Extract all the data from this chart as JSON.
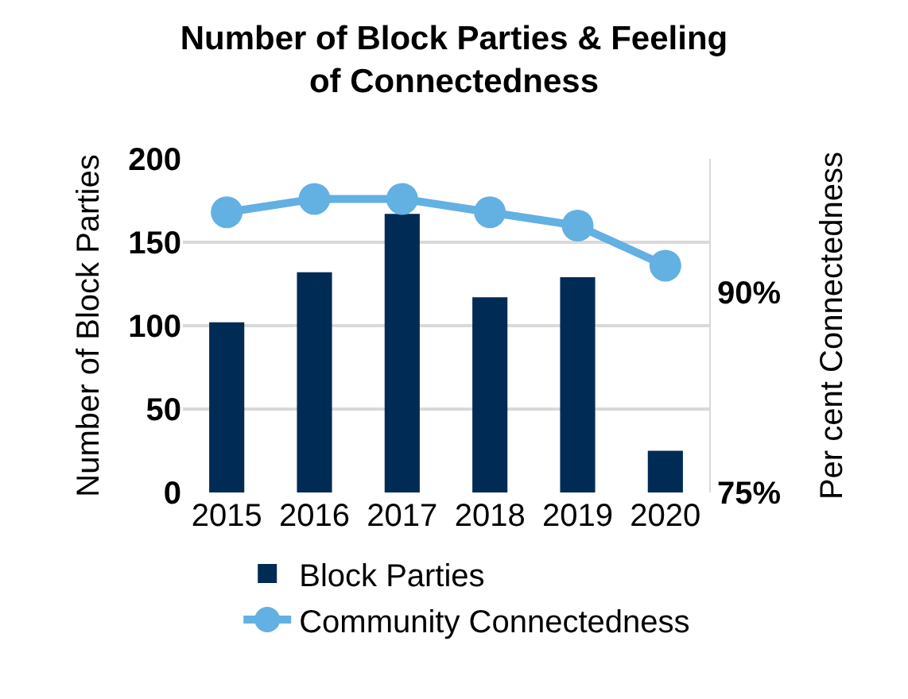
{
  "chart_data": {
    "type": "bar",
    "title": "Number of Block Parties & Feeling of Connectedness",
    "categories": [
      "2015",
      "2016",
      "2017",
      "2018",
      "2019",
      "2020"
    ],
    "series": [
      {
        "name": "Block Parties",
        "color": "#002b55",
        "values": [
          102,
          132,
          167,
          117,
          129,
          25
        ]
      },
      {
        "name": "Community Connectedness",
        "type": "line",
        "axis": "y2",
        "color": "#63b0e3",
        "marker": "circle",
        "values": [
          96,
          97,
          97,
          96,
          95,
          92
        ]
      }
    ],
    "ylabel": "Number of Block Parties",
    "y2label": "Per cent Connectedness",
    "ylim": [
      0,
      200
    ],
    "yticks": [
      0,
      50,
      100,
      150,
      200
    ],
    "y2lim": [
      75,
      100
    ],
    "y2ticks": [
      {
        "value": 75,
        "label": "75%"
      },
      {
        "value": 90,
        "label": "90%"
      }
    ],
    "grid": "y",
    "legend": "bottom"
  }
}
